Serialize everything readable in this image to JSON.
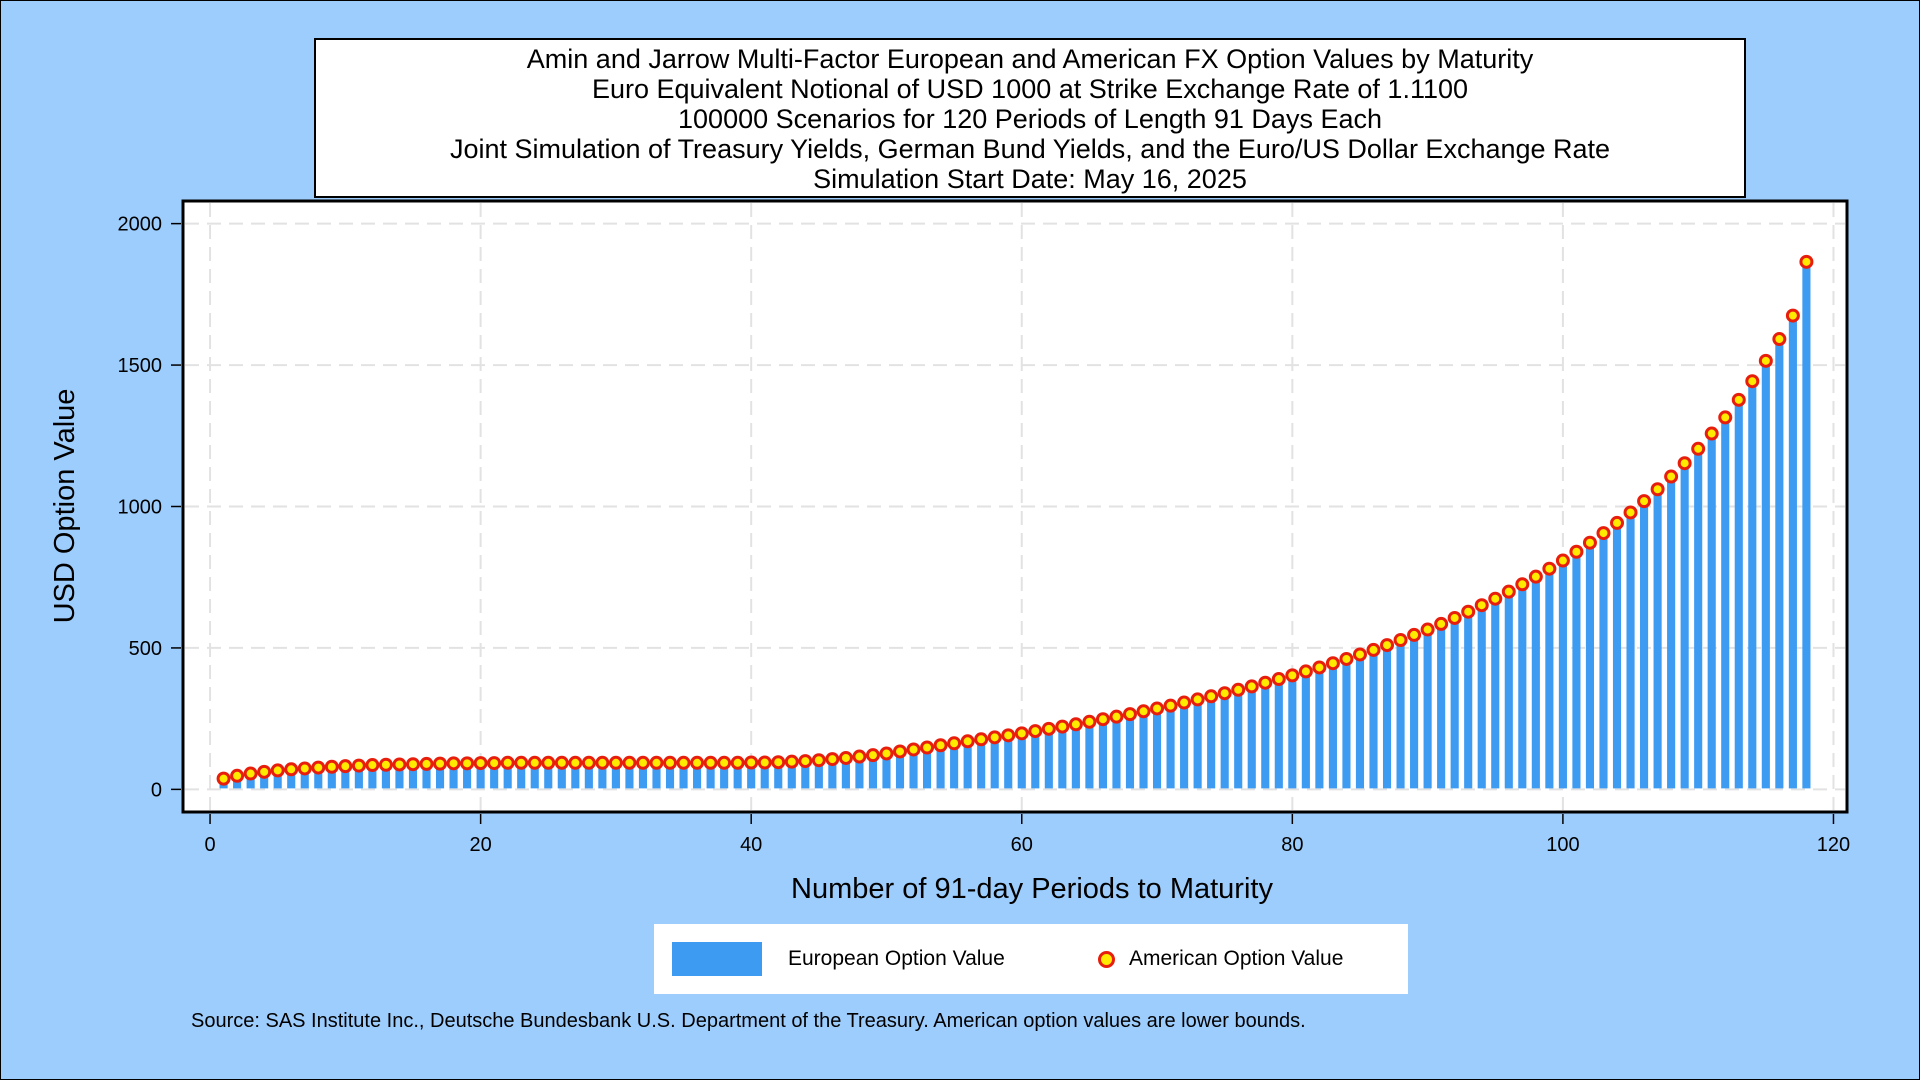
{
  "chart_data": {
    "type": "bar",
    "title": [
      "Amin and Jarrow Multi-Factor European and American FX Option Values by Maturity",
      "Euro Equivalent Notional of USD 1000 at Strike Exchange Rate of  1.1100",
      "100000 Scenarios for 120 Periods of Length 91 Days Each",
      "Joint Simulation of Treasury Yields, German Bund Yields, and the Euro/US Dollar Exchange Rate",
      "Simulation Start Date: May 16, 2025"
    ],
    "xlabel": "Number of 91-day Periods to Maturity",
    "ylabel": "USD Option Value",
    "xlim": [
      -2,
      121
    ],
    "ylim": [
      -80,
      2080
    ],
    "xticks": [
      0,
      20,
      40,
      60,
      80,
      100,
      120
    ],
    "yticks": [
      0,
      500,
      1000,
      1500,
      2000
    ],
    "grid": true,
    "legend_position": "bottom",
    "x": [
      1,
      2,
      3,
      4,
      5,
      6,
      7,
      8,
      9,
      10,
      11,
      12,
      13,
      14,
      15,
      16,
      17,
      18,
      19,
      20,
      21,
      22,
      23,
      24,
      25,
      26,
      27,
      28,
      29,
      30,
      31,
      32,
      33,
      34,
      35,
      36,
      37,
      38,
      39,
      40,
      41,
      42,
      43,
      44,
      45,
      46,
      47,
      48,
      49,
      50,
      51,
      52,
      53,
      54,
      55,
      56,
      57,
      58,
      59,
      60,
      61,
      62,
      63,
      64,
      65,
      66,
      67,
      68,
      69,
      70,
      71,
      72,
      73,
      74,
      75,
      76,
      77,
      78,
      79,
      80,
      81,
      82,
      83,
      84,
      85,
      86,
      87,
      88,
      89,
      90,
      91,
      92,
      93,
      94,
      95,
      96,
      97,
      98,
      99,
      100,
      101,
      102,
      103,
      104,
      105,
      106,
      107,
      108,
      109,
      110,
      111,
      112,
      113,
      114,
      115,
      116,
      117,
      118
    ],
    "series": [
      {
        "name": "European Option Value",
        "style": "bar",
        "color": "#3d9bf2",
        "values": [
          35,
          45,
          53,
          59,
          64,
          68,
          71,
          74,
          77,
          79,
          81,
          83,
          84,
          85,
          86,
          87,
          88,
          89,
          89,
          90,
          90,
          91,
          91,
          91,
          91,
          91,
          91,
          91,
          91,
          91,
          91,
          91,
          91,
          91,
          91,
          91,
          91,
          91,
          91,
          92,
          92,
          93,
          95,
          97,
          100,
          104,
          108,
          113,
          118,
          124,
          131,
          138,
          145,
          153,
          160,
          167,
          174,
          181,
          188,
          195,
          203,
          211,
          219,
          227,
          236,
          245,
          254,
          263,
          273,
          283,
          293,
          304,
          315,
          326,
          337,
          349,
          361,
          374,
          387,
          400,
          414,
          428,
          443,
          458,
          474,
          490,
          507,
          525,
          543,
          562,
          582,
          603,
          625,
          648,
          671,
          696,
          722,
          749,
          777,
          806,
          837,
          869,
          903,
          939,
          976,
          1016,
          1058,
          1103,
          1150,
          1201,
          1255,
          1312,
          1374,
          1440,
          1512,
          1589,
          1672,
          1862
        ]
      },
      {
        "name": "American Option Value",
        "style": "marker",
        "color": "#ffea00",
        "edge_color": "#e81e0c",
        "values": [
          38,
          48,
          56,
          62,
          67,
          71,
          74,
          77,
          80,
          82,
          84,
          86,
          87,
          88,
          89,
          90,
          91,
          92,
          92,
          93,
          93,
          94,
          94,
          94,
          94,
          94,
          94,
          94,
          94,
          94,
          94,
          94,
          94,
          94,
          94,
          94,
          94,
          94,
          94,
          95,
          95,
          96,
          98,
          100,
          103,
          107,
          111,
          116,
          121,
          127,
          134,
          141,
          148,
          156,
          163,
          170,
          177,
          184,
          191,
          198,
          206,
          214,
          222,
          230,
          239,
          248,
          257,
          266,
          276,
          286,
          296,
          307,
          318,
          329,
          340,
          352,
          364,
          377,
          390,
          403,
          417,
          431,
          446,
          461,
          477,
          493,
          510,
          528,
          546,
          565,
          585,
          606,
          628,
          651,
          674,
          699,
          725,
          752,
          780,
          809,
          840,
          872,
          906,
          942,
          979,
          1019,
          1061,
          1106,
          1153,
          1204,
          1258,
          1315,
          1377,
          1443,
          1515,
          1592,
          1675,
          1865
        ]
      }
    ]
  },
  "source_note": "Source: SAS Institute Inc., Deutsche Bundesbank U.S. Department of the Treasury. American option values are lower bounds."
}
